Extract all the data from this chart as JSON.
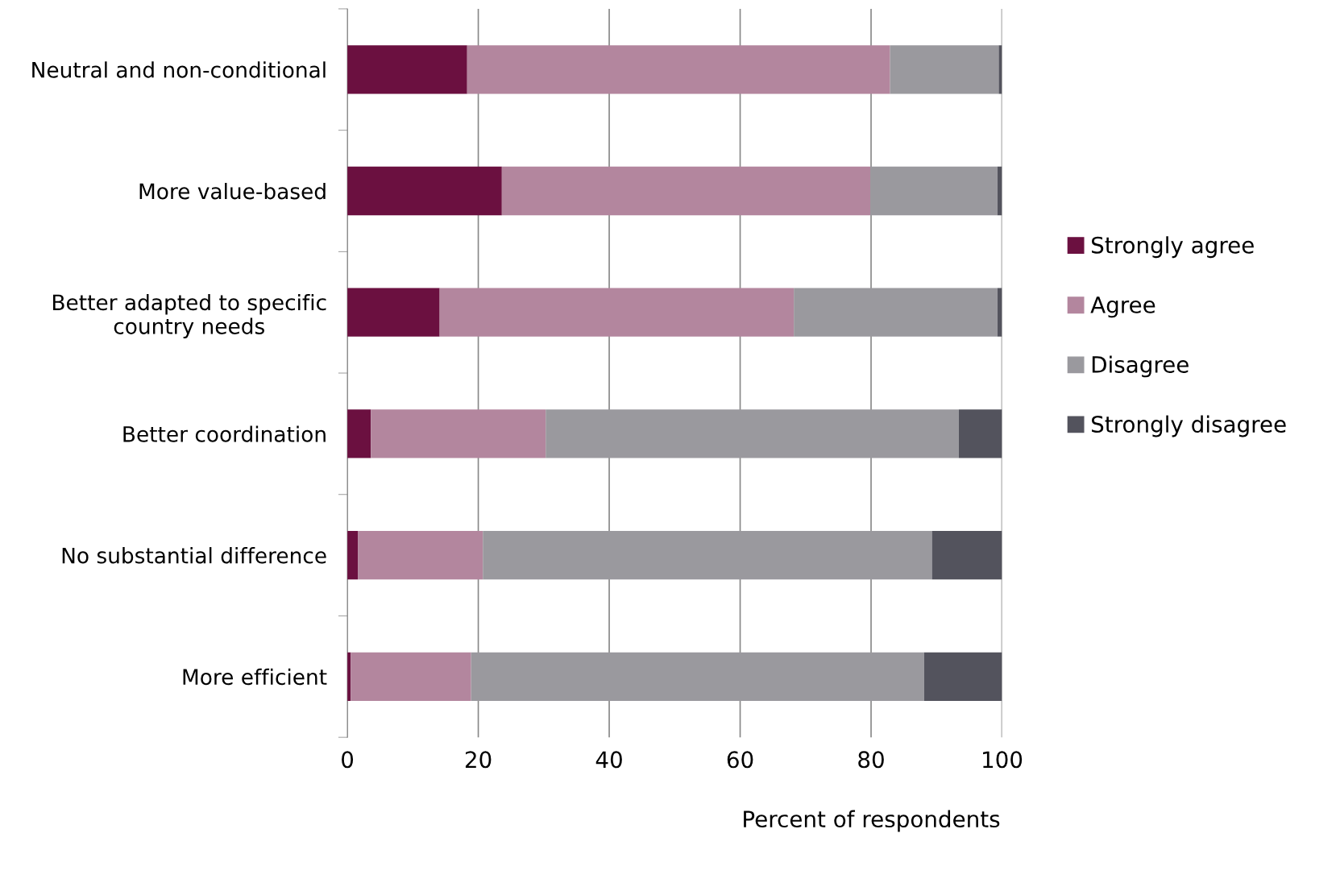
{
  "chart_data": {
    "type": "bar",
    "orientation": "horizontal",
    "stacked": true,
    "categories": [
      "Neutral and non-conditional",
      "More value-based",
      "Better adapted to specific\ncountry needs",
      "Better coordination",
      "No substantial difference",
      "More efficient"
    ],
    "series": [
      {
        "name": "Strongly agree",
        "color": "#6b1040",
        "values": [
          18.3,
          23.6,
          14.1,
          3.6,
          1.6,
          0.5
        ]
      },
      {
        "name": "Agree",
        "color": "#b3869e",
        "values": [
          64.6,
          56.3,
          54.1,
          26.7,
          19.1,
          18.4
        ]
      },
      {
        "name": "Disagree",
        "color": "#9a999e",
        "values": [
          16.6,
          19.4,
          31.1,
          63.1,
          68.6,
          69.2
        ]
      },
      {
        "name": "Strongly disagree",
        "color": "#53535d",
        "values": [
          0.5,
          0.7,
          0.7,
          6.6,
          10.7,
          11.9
        ]
      }
    ],
    "xlabel": "Percent of respondents",
    "xlim": [
      0,
      100
    ],
    "xticks": [
      0,
      20,
      40,
      60,
      80,
      100
    ],
    "grid": "x",
    "legend": "right"
  }
}
